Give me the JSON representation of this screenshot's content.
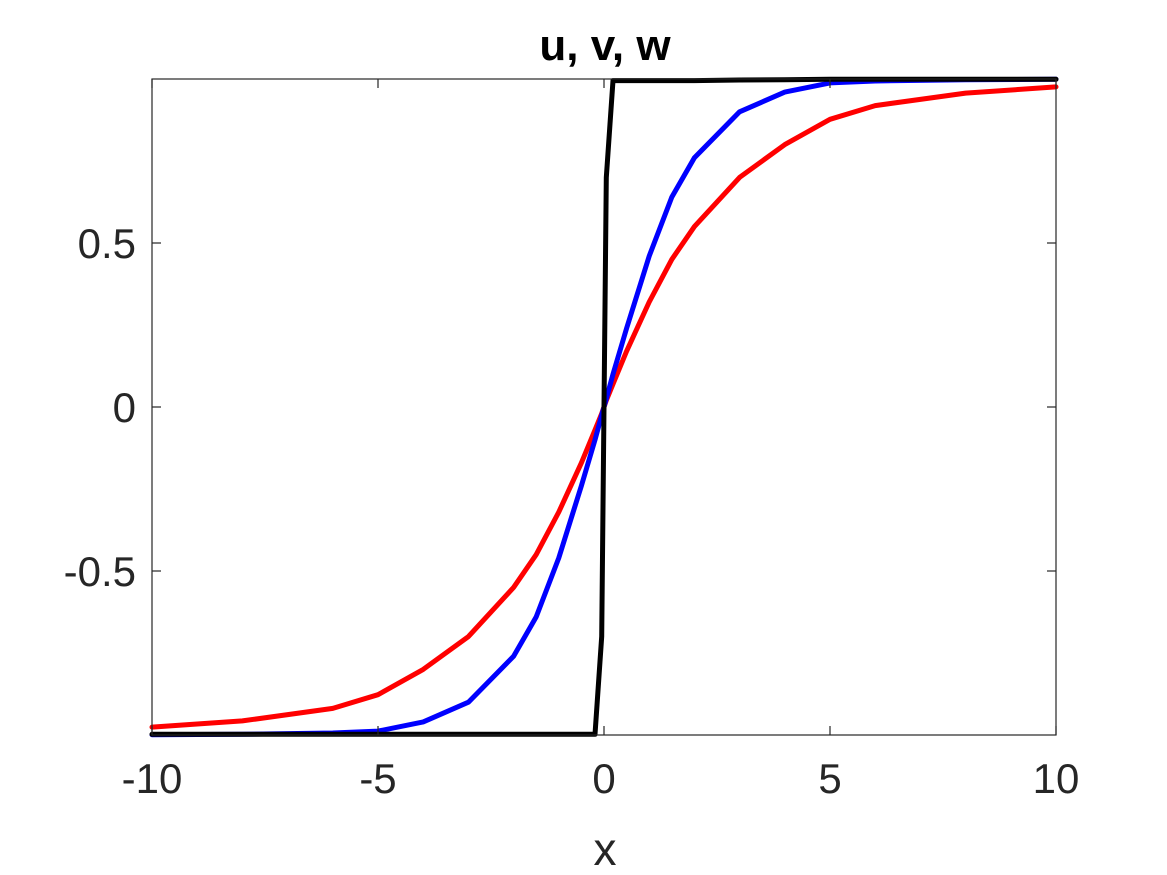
{
  "chart_data": {
    "type": "line",
    "title": "u, v, w",
    "xlabel": "x",
    "ylabel": "",
    "xlim": [
      -10,
      10
    ],
    "ylim": [
      -1,
      1
    ],
    "xticks": [
      -10,
      -5,
      0,
      5,
      10
    ],
    "xtick_labels": [
      "-10",
      "-5",
      "0",
      "5",
      "10"
    ],
    "yticks": [
      -0.5,
      0,
      0.5
    ],
    "ytick_labels": [
      "-0.5",
      "0",
      "0.5"
    ],
    "grid": false,
    "legend": null,
    "x": [
      -10,
      -8,
      -6,
      -5,
      -4,
      -3,
      -2,
      -1.5,
      -1,
      -0.5,
      -0.2,
      -0.05,
      0,
      0.05,
      0.2,
      0.5,
      1,
      1.5,
      2,
      3,
      4,
      5,
      6,
      8,
      10
    ],
    "series": [
      {
        "color": "#ff0000",
        "y": [
          -0.976,
          -0.957,
          -0.919,
          -0.877,
          -0.8,
          -0.7,
          -0.55,
          -0.45,
          -0.32,
          -0.17,
          -0.07,
          -0.02,
          0,
          0.02,
          0.07,
          0.17,
          0.32,
          0.45,
          0.55,
          0.7,
          0.8,
          0.877,
          0.919,
          0.957,
          0.976
        ]
      },
      {
        "color": "#0000ff",
        "y": [
          -0.999,
          -0.998,
          -0.994,
          -0.988,
          -0.96,
          -0.9,
          -0.76,
          -0.64,
          -0.46,
          -0.24,
          -0.1,
          -0.025,
          0,
          0.025,
          0.1,
          0.24,
          0.46,
          0.64,
          0.76,
          0.9,
          0.96,
          0.988,
          0.994,
          0.998,
          0.999
        ]
      },
      {
        "color": "#000000",
        "y": [
          -0.998,
          -0.998,
          -0.998,
          -0.998,
          -0.998,
          -0.998,
          -0.998,
          -0.998,
          -0.998,
          -0.998,
          -0.998,
          -0.7,
          0,
          0.7,
          0.995,
          0.995,
          0.995,
          0.995,
          0.995,
          0.997,
          0.998,
          0.999,
          0.999,
          0.999,
          0.999
        ]
      }
    ]
  }
}
